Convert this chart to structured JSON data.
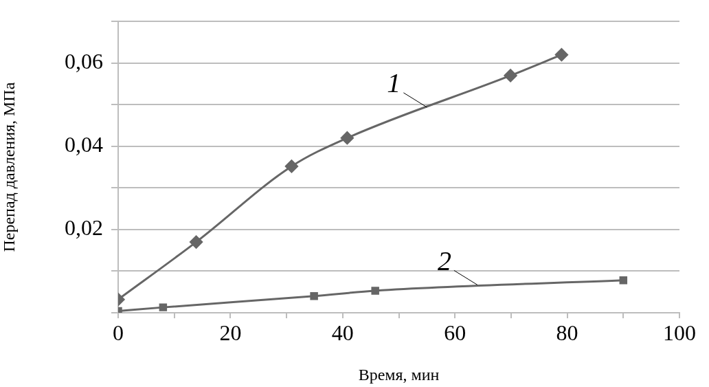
{
  "chart_data": {
    "type": "line",
    "xlabel": "Время, мин",
    "ylabel": "Перепад давления, МПа",
    "xlim": [
      0,
      100
    ],
    "xticks": [
      0,
      {
        "value": 10,
        "label": null
      },
      20,
      {
        "value": 30,
        "label": null
      },
      40,
      {
        "value": 50,
        "label": null
      },
      60,
      {
        "value": 70,
        "label": null
      },
      80,
      {
        "value": 90,
        "label": null
      },
      100
    ],
    "ylim": [
      0,
      0.07
    ],
    "yticks": [
      {
        "value": 0,
        "label": null
      },
      {
        "value": 0.01,
        "label": null
      },
      {
        "value": 0.02,
        "label": "0,02"
      },
      {
        "value": 0.03,
        "label": null
      },
      {
        "value": 0.04,
        "label": "0,04"
      },
      {
        "value": 0.05,
        "label": null
      },
      {
        "value": 0.06,
        "label": "0,06"
      },
      {
        "value": 0.07,
        "label": null
      }
    ],
    "grid": "y",
    "legend": false,
    "line_style": "solid",
    "series": [
      {
        "color": "#666666",
        "marker": "diamond",
        "x": [
          0,
          13.9,
          30.9,
          40.8,
          69.9,
          79
        ],
        "values": [
          0.0032,
          0.017,
          0.0352,
          0.042,
          0.057,
          0.062
        ]
      },
      {
        "color": "#666666",
        "marker": "square",
        "x": [
          0,
          8,
          34.9,
          45.8,
          90
        ],
        "values": [
          0.0004,
          0.0013,
          0.004,
          0.0053,
          0.0078
        ]
      }
    ],
    "annotations": [
      {
        "text": "1",
        "x": 55,
        "y": 0.0494
      },
      {
        "text": "2",
        "x": 64,
        "y": 0.0067
      }
    ]
  }
}
